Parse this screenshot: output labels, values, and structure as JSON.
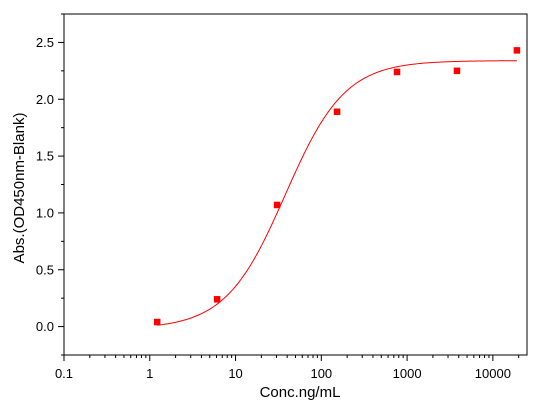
{
  "chart_data": {
    "type": "scatter",
    "xlabel": "Conc.ng/mL",
    "ylabel": "Abs.(OD450nm-Blank)",
    "xscale": "log",
    "xlim": [
      0.1,
      25000
    ],
    "ylim": [
      -0.25,
      2.75
    ],
    "x_ticks": [
      0.1,
      1,
      10,
      100,
      1000,
      10000
    ],
    "x_tick_labels": [
      "0.1",
      "1",
      "10",
      "100",
      "1000",
      "10000"
    ],
    "y_ticks": [
      0.0,
      0.5,
      1.0,
      1.5,
      2.0,
      2.5
    ],
    "y_tick_labels": [
      "0.0",
      "0.5",
      "1.0",
      "1.5",
      "2.0",
      "2.5"
    ],
    "grid": false,
    "legend": "none",
    "series": [
      {
        "marker": "square",
        "color": "#ff0000",
        "x": [
          1.22,
          6.1,
          30.5,
          152.6,
          762.9,
          3815,
          19073
        ],
        "y": [
          0.04,
          0.24,
          1.07,
          1.89,
          2.24,
          2.25,
          2.43
        ]
      }
    ],
    "fit_curve": {
      "color": "#ff0000",
      "model": "4PL",
      "bottom": -0.02,
      "top": 2.34,
      "ec50": 38,
      "hill": 1.25
    }
  }
}
